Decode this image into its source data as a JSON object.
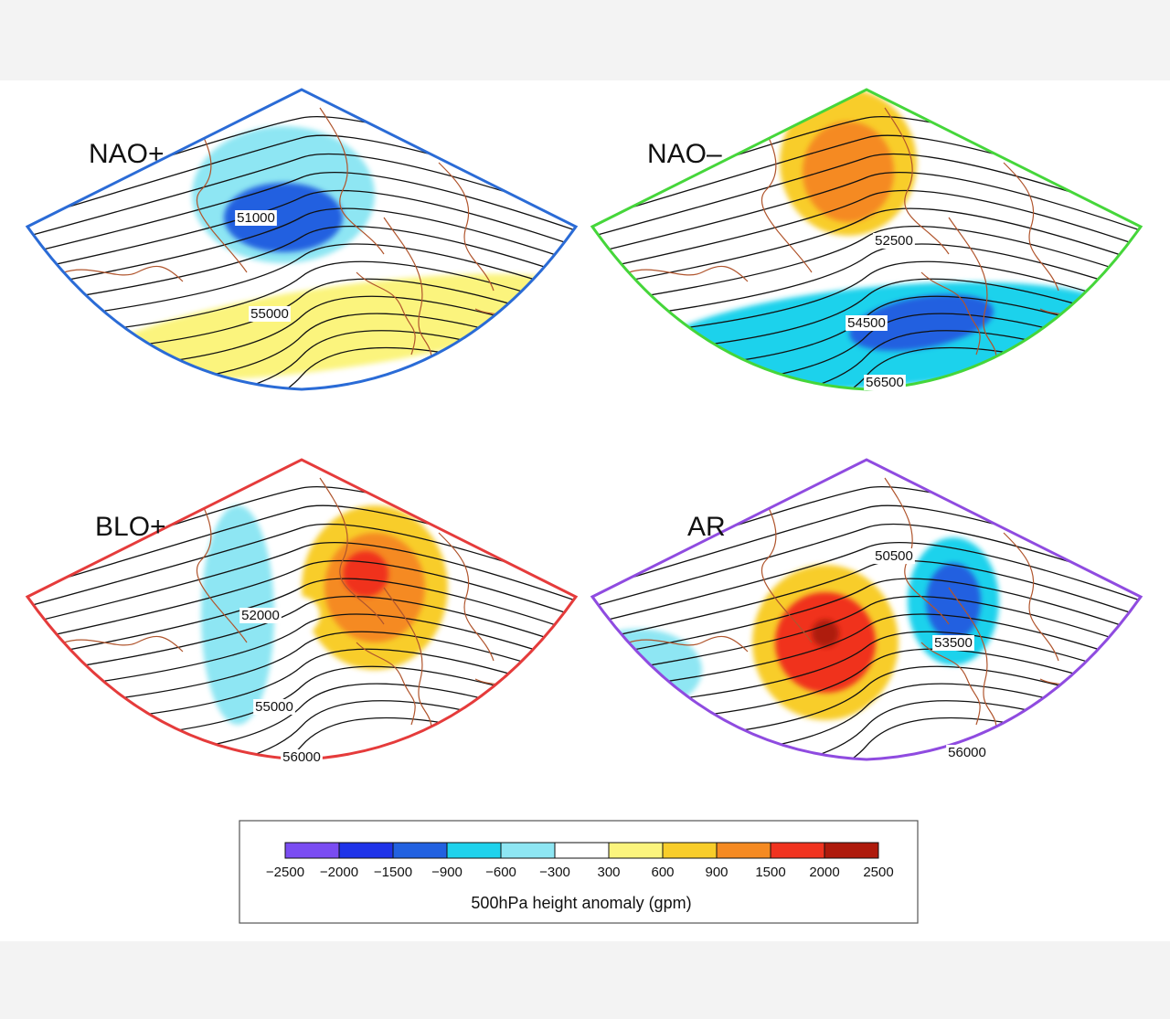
{
  "panels": [
    {
      "id": "nao-plus",
      "title": "NAO+",
      "frame_color": "#2a6bd6",
      "contour_labels": [
        "51000",
        "55000"
      ],
      "anomaly_centers": [
        {
          "kind": "negative",
          "peak_level": "-1500"
        },
        {
          "kind": "positive",
          "peak_level": "300"
        }
      ]
    },
    {
      "id": "nao-minus",
      "title": "NAO–",
      "frame_color": "#45d63a",
      "contour_labels": [
        "52500",
        "54500",
        "56500"
      ],
      "anomaly_centers": [
        {
          "kind": "positive",
          "peak_level": "1500"
        },
        {
          "kind": "negative",
          "peak_level": "-1500"
        }
      ]
    },
    {
      "id": "blo-plus",
      "title": "BLO+",
      "frame_color": "#e53b3b",
      "contour_labels": [
        "52000",
        "55000",
        "56000"
      ],
      "anomaly_centers": [
        {
          "kind": "positive",
          "peak_level": "2000"
        },
        {
          "kind": "negative",
          "peak_level": "-600"
        }
      ]
    },
    {
      "id": "ar",
      "title": "AR",
      "frame_color": "#8f4be0",
      "contour_labels": [
        "50500",
        "53500",
        "56000"
      ],
      "anomaly_centers": [
        {
          "kind": "positive",
          "peak_level": "2500"
        },
        {
          "kind": "negative",
          "peak_level": "-1500"
        }
      ]
    }
  ],
  "colorbar": {
    "title": "500hPa height anomaly (gpm)",
    "tick_labels": [
      "−2500",
      "−2000",
      "−1500",
      "−900",
      "−600",
      "−300",
      "300",
      "600",
      "900",
      "1500",
      "2000",
      "2500"
    ],
    "colors": [
      "#7a4cf2",
      "#1f33e8",
      "#2261e0",
      "#1fd2ec",
      "#8ee6f3",
      "#ffffff",
      "#fbf47d",
      "#f8cd2a",
      "#f58a22",
      "#f0331f",
      "#ae1a0c"
    ]
  },
  "colors": {
    "coast": "#b0552d",
    "contour": "#111111"
  }
}
